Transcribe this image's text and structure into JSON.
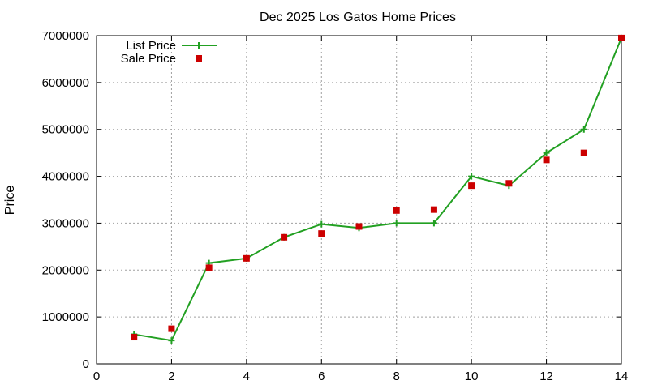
{
  "chart_data": {
    "type": "line",
    "title": "Dec 2025 Los Gatos Home Prices",
    "xlabel": "",
    "ylabel": "Price",
    "xlim": [
      0,
      14
    ],
    "ylim": [
      0,
      7000000
    ],
    "x_ticks": [
      "0",
      "2",
      "4",
      "6",
      "8",
      "10",
      "12",
      "14"
    ],
    "y_ticks": [
      "0",
      "1000000",
      "2000000",
      "3000000",
      "4000000",
      "5000000",
      "6000000",
      "7000000"
    ],
    "grid": true,
    "legend_position": "top-left",
    "series": [
      {
        "name": "List Price",
        "style": "line-with-plus-markers",
        "color": "#22a022",
        "x": [
          1,
          2,
          3,
          4,
          5,
          6,
          7,
          8,
          9,
          10,
          11,
          12,
          13,
          14
        ],
        "y": [
          630000,
          500000,
          2150000,
          2250000,
          2700000,
          2980000,
          2900000,
          3000000,
          3000000,
          4000000,
          3800000,
          4500000,
          5000000,
          6950000
        ]
      },
      {
        "name": "Sale Price",
        "style": "square-markers",
        "color": "#cc0000",
        "x": [
          1,
          2,
          3,
          4,
          5,
          6,
          7,
          8,
          9,
          10,
          11,
          12,
          13,
          14
        ],
        "y": [
          570000,
          750000,
          2050000,
          2250000,
          2700000,
          2780000,
          2930000,
          3270000,
          3290000,
          3800000,
          3850000,
          4350000,
          4500000,
          6950000
        ]
      }
    ]
  }
}
